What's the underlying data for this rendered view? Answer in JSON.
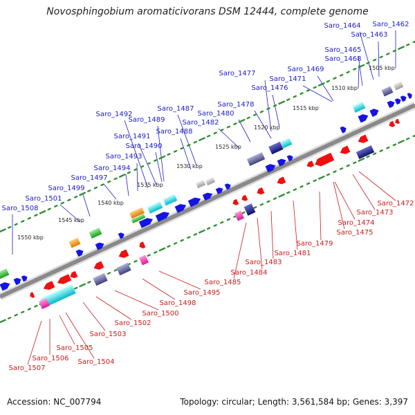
{
  "title": "Novosphingobium aromaticivorans DSM 12444, complete genome",
  "accession": "Accession: NC_007794",
  "topology": "Topology: circular; Length: 3,561,584 bp; Genes: 3,397",
  "colors": {
    "backbone": "#8a8a8a",
    "forward_label": "#1a1acc",
    "reverse_label": "#cc1a1a",
    "forward_gene": "#1414e6",
    "reverse_gene": "#ee1111",
    "dots": "#2f8f2f"
  },
  "positions": [
    "1505 kbp",
    "1510 kbp",
    "1515 kbp",
    "1520 kbp",
    "1525 kbp",
    "1530 kbp",
    "1535 kbp",
    "1540 kbp",
    "1545 kbp",
    "1550 kbp"
  ],
  "forward_labels": [
    "Saro_1462",
    "Saro_1463",
    "Saro_1464",
    "Saro_1465",
    "Saro_1468",
    "Saro_1469",
    "Saro_1471",
    "Saro_1476",
    "Saro_1477",
    "Saro_1478",
    "Saro_1480",
    "Saro_1482",
    "Saro_1487",
    "Saro_1488",
    "Saro_1489",
    "Saro_1490",
    "Saro_1491",
    "Saro_1492",
    "Saro_1493",
    "Saro_1494",
    "Saro_1497",
    "Saro_1499",
    "Saro_1501",
    "Saro_1508"
  ],
  "reverse_labels": [
    "Saro_1472",
    "Saro_1473",
    "Saro_1474",
    "Saro_1475",
    "Saro_1479",
    "Saro_1481",
    "Saro_1483",
    "Saro_1484",
    "Saro_1485",
    "Saro_1495",
    "Saro_1498",
    "Saro_1500",
    "Saro_1502",
    "Saro_1503",
    "Saro_1504",
    "Saro_1505",
    "Saro_1506",
    "Saro_1507"
  ]
}
